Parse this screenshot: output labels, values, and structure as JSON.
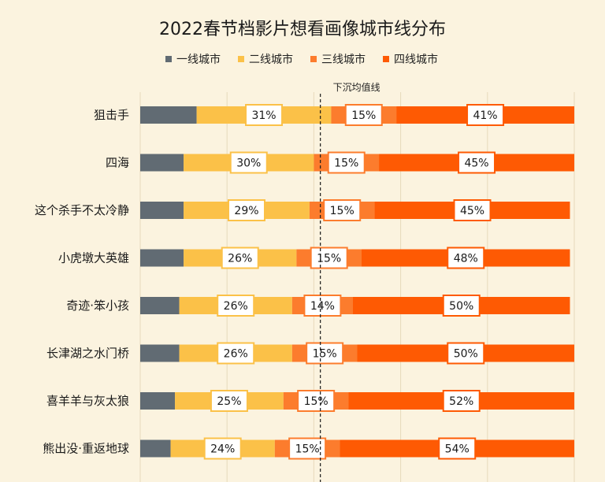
{
  "chart_data": {
    "type": "bar",
    "orientation": "horizontal",
    "stacked": true,
    "title": "2022春节档影片想看画像城市线分布",
    "xlabel": "",
    "ylabel": "",
    "xlim": [
      0,
      100
    ],
    "grid": true,
    "legend_position": "top-center",
    "categories": [
      "狙击手",
      "四海",
      "这个杀手不太冷静",
      "小虎墩大英雄",
      "奇迹·笨小孩",
      "长津湖之水门桥",
      "喜羊羊与灰太狼",
      "熊出没·重返地球"
    ],
    "series": [
      {
        "name": "一线城市",
        "color": "#616b73",
        "values": [
          13,
          10,
          10,
          10,
          9,
          9,
          8,
          7
        ]
      },
      {
        "name": "二线城市",
        "color": "#fbc148",
        "values": [
          31,
          30,
          29,
          26,
          26,
          26,
          25,
          24
        ]
      },
      {
        "name": "三线城市",
        "color": "#fc7c2d",
        "values": [
          15,
          15,
          15,
          15,
          14,
          15,
          15,
          15
        ]
      },
      {
        "name": "四线城市",
        "color": "#fe5a03",
        "values": [
          41,
          45,
          45,
          48,
          50,
          50,
          52,
          54
        ]
      }
    ],
    "labeled_series": [
      "二线城市",
      "三线城市",
      "四线城市"
    ],
    "value_suffix": "%",
    "reference_line": {
      "label": "下沉均值线",
      "value": 41.5,
      "style": "dashed"
    }
  }
}
